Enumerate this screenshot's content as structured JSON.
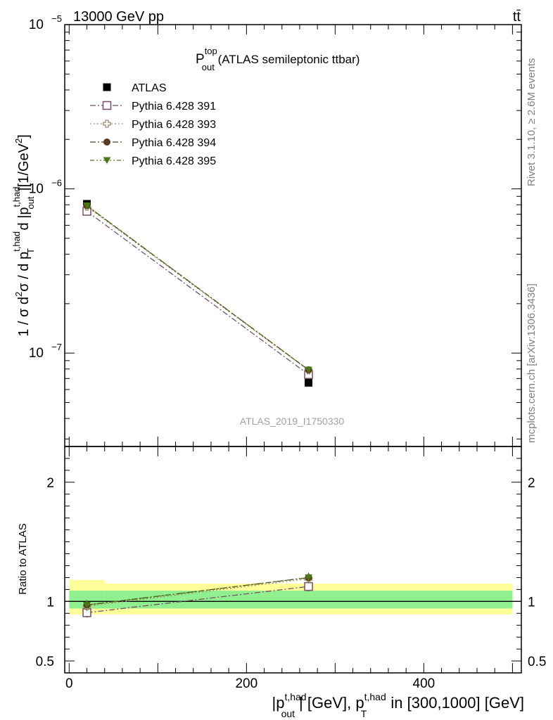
{
  "header": {
    "left": "13000 GeV pp",
    "right": "tt̄"
  },
  "side": {
    "rivet": "Rivet 3.1.10, ≥ 2.6M events",
    "mcplots": "mcplots.cern.ch [arXiv:1306.3436]"
  },
  "chart_data": [
    {
      "type": "line",
      "title": "P_out^top (ATLAS semileptonic ttbar)",
      "title_main": "P",
      "title_sup": "top",
      "title_sub": "out",
      "title_rest": " (ATLAS semileptonic ttbar)",
      "analysis_label": "ATLAS_2019_I1750330",
      "ylabel": "1 / σ d²σ / d p_T^{t,had} d |p_out^{t,had}| [1/GeV²]",
      "ylabel_parts": {
        "a": "1 / σ d",
        "b": "2",
        "c": "σ / d p",
        "d": "t,had",
        "e": "T",
        "f": " d |p",
        "g": "t,had",
        "h": "out",
        "i": "|[1/GeV",
        "j": "2",
        "k": "]"
      },
      "yscale": "log",
      "ylim": [
        2.7e-08,
        1e-05
      ],
      "xlim": [
        -5,
        510
      ],
      "ytick_labels": [
        {
          "value": 1e-05,
          "base": "10",
          "exp": "−5"
        },
        {
          "value": 1e-06,
          "base": "10",
          "exp": "−6"
        },
        {
          "value": 1e-07,
          "base": "10",
          "exp": "−7"
        }
      ],
      "x": [
        20,
        270
      ],
      "legend_position": "top-left",
      "series": [
        {
          "name": "ATLAS",
          "values": [
            8.1e-07,
            6.6e-08
          ],
          "marker": "filled-square",
          "color": "#000000",
          "line": "none"
        },
        {
          "name": "Pythia 6.428 391",
          "values": [
            7.3e-07,
            7.4e-08
          ],
          "marker": "open-square",
          "color": "#7a4b66",
          "line": "dashdot"
        },
        {
          "name": "Pythia 6.428 393",
          "values": [
            7.8e-07,
            7.85e-08
          ],
          "marker": "open-cross",
          "color": "#9c8a6a",
          "line": "dotted"
        },
        {
          "name": "Pythia 6.428 394",
          "values": [
            7.9e-07,
            7.9e-08
          ],
          "marker": "filled-circle",
          "color": "#5b3a22",
          "line": "dashdot"
        },
        {
          "name": "Pythia 6.428 395",
          "values": [
            7.9e-07,
            7.9e-08
          ],
          "marker": "filled-triangle-down",
          "color": "#4a7a18",
          "line": "dashdotdot"
        }
      ]
    },
    {
      "type": "line",
      "ylabel": "Ratio to ATLAS",
      "xlabel": "|p_out^{t,had}| [GeV], p_T^{t,had} in [300,1000] [GeV]",
      "xlabel_parts": {
        "a": "|p",
        "b": "t,had",
        "c": "out",
        "d": "| [GeV], p",
        "e": "t,had",
        "f": "T",
        "g": " in [300,1000] [GeV]"
      },
      "ylim": [
        0.4,
        2.3
      ],
      "xlim": [
        -5,
        510
      ],
      "ytick_labels": [
        "0.5",
        "1",
        "2"
      ],
      "xtick_labels": [
        "0",
        "200",
        "400"
      ],
      "xticks": [
        0,
        200,
        400
      ],
      "x": [
        20,
        270
      ],
      "bands": {
        "green": {
          "color": "#90f090",
          "segments": [
            [
              0,
              40,
              0.94,
              1.09
            ],
            [
              40,
              500,
              0.94,
              1.09
            ]
          ]
        },
        "yellow": {
          "color": "#ffff99",
          "segments": [
            [
              0,
              40,
              0.89,
              1.18
            ],
            [
              40,
              500,
              0.89,
              1.15
            ]
          ]
        }
      },
      "series": [
        {
          "name": "Pythia 6.428 391",
          "values": [
            0.905,
            1.125
          ]
        },
        {
          "name": "Pythia 6.428 393",
          "values": [
            0.96,
            1.19
          ]
        },
        {
          "name": "Pythia 6.428 394",
          "values": [
            0.97,
            1.2
          ]
        },
        {
          "name": "Pythia 6.428 395",
          "values": [
            0.97,
            1.2
          ]
        }
      ]
    }
  ]
}
